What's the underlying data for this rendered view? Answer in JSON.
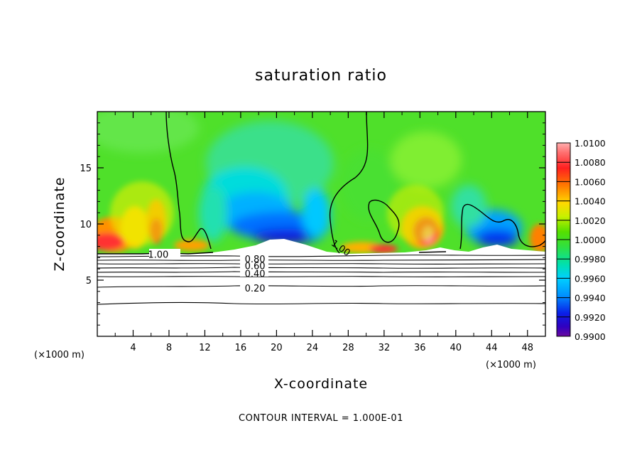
{
  "chart_data": {
    "type": "heatmap",
    "title": "saturation ratio",
    "xlabel": "X-coordinate",
    "ylabel": "Z-coordinate",
    "x_unit_left": "(×1000 m)",
    "x_unit_right": "(×1000 m)",
    "footer": "CONTOUR INTERVAL = 1.000E-01",
    "xlim": [
      0,
      50
    ],
    "ylim": [
      0,
      20
    ],
    "x_ticks": [
      4,
      8,
      12,
      16,
      20,
      24,
      28,
      32,
      36,
      40,
      44,
      48
    ],
    "x_tick_labels": [
      "4",
      "8",
      "12",
      "16",
      "20",
      "24",
      "28",
      "32",
      "36",
      "40",
      "44",
      "48"
    ],
    "y_ticks": [
      5,
      10,
      15
    ],
    "y_tick_labels": [
      "5",
      "10",
      "15"
    ],
    "colorbar": {
      "min": 0.99,
      "max": 1.01,
      "labels": [
        "1.0100",
        "1.0080",
        "1.0060",
        "1.0040",
        "1.0020",
        "1.0000",
        "0.9980",
        "0.9960",
        "0.9940",
        "0.9920",
        "0.9900"
      ],
      "colors": [
        "#ff8c8c",
        "#ff2a2a",
        "#ff7e00",
        "#ffe600",
        "#55e000",
        "#3fe03a",
        "#00e0a8",
        "#00d8ff",
        "#0094ff",
        "#0a14e8",
        "#6a0aa0"
      ]
    },
    "contour_labels": [
      {
        "text": "1.00",
        "x": 6.8,
        "y": 7.3
      },
      {
        "text": "1.00",
        "x": 27.2,
        "y": 7.9
      },
      {
        "text": "0.80",
        "x": 17.6,
        "y": 6.9
      },
      {
        "text": "0.60",
        "x": 17.6,
        "y": 6.3
      },
      {
        "text": "0.40",
        "x": 17.6,
        "y": 5.6
      },
      {
        "text": "0.20",
        "x": 17.6,
        "y": 4.3
      }
    ],
    "contour_1_00_level": 1.0,
    "contour_interval": 0.1,
    "subsaturated_below_z": 7.3
  }
}
